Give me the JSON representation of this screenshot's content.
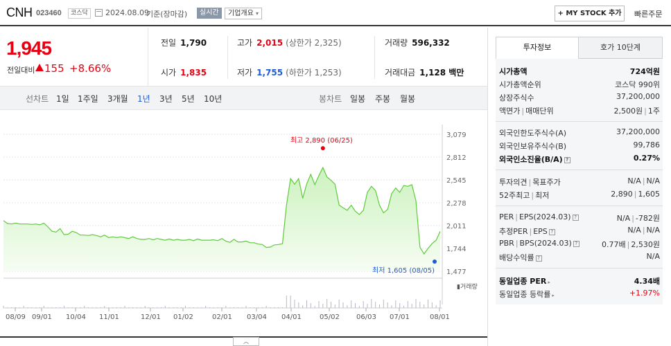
{
  "header": {
    "name": "CNH",
    "code": "023460",
    "market": "코스닥",
    "date": "2024.08.09",
    "basis": "기준(장마감)",
    "realtime": "실시간",
    "overview": "기업개요",
    "my_stock": "+ MY STOCK 추가",
    "quick_order": "빠른주문"
  },
  "price": {
    "current": "1,945",
    "change_label": "전일대비",
    "change": "155",
    "change_pct": "+8.66%"
  },
  "stats": {
    "prev_label": "전일",
    "prev": "1,790",
    "high_label": "고가",
    "high": "2,015",
    "upper_limit": "(상한가 2,325)",
    "volume_label": "거래량",
    "volume": "596,332",
    "open_label": "시가",
    "open": "1,835",
    "low_label": "저가",
    "low": "1,755",
    "lower_limit": "(하한가 1,253)",
    "amount_label": "거래대금",
    "amount": "1,128 백만"
  },
  "tabs": {
    "line_label": "선차트",
    "line": [
      "1일",
      "1주일",
      "3개월",
      "1년",
      "3년",
      "5년",
      "10년"
    ],
    "active": "1년",
    "candle_label": "봉차트",
    "candle": [
      "일봉",
      "주봉",
      "월봉"
    ]
  },
  "chart_data": {
    "type": "area",
    "y_ticks": [
      "3,079",
      "2,812",
      "2,545",
      "2,278",
      "2,011",
      "1,744",
      "1,477"
    ],
    "ylim": [
      1477,
      3079
    ],
    "x_ticks": [
      "08/09",
      "09/01",
      "10/04",
      "11/01",
      "12/01",
      "01/02",
      "02/01",
      "03/04",
      "04/01",
      "05/02",
      "06/03",
      "07/01",
      "08/01"
    ],
    "annotation_high": "최고 2,890 (06/25)",
    "annotation_low": "최저 1,605 (08/05)",
    "volume_legend": "거래량",
    "line_color": "#5ecb3a",
    "fill_color": "#ccf2bf",
    "series": [
      {
        "values": [
          2070,
          2035,
          2030,
          2040,
          2030,
          2030,
          2030,
          2025,
          2030,
          2020,
          2040,
          1995,
          1945,
          1935,
          1975,
          1905,
          1910,
          1945,
          1930,
          1900,
          1900,
          1895,
          1905,
          1895,
          1880,
          1900,
          1870,
          1880,
          1870,
          1880,
          1870,
          1860,
          1880,
          1860,
          1850,
          1850,
          1860,
          1845,
          1860,
          1850,
          1840,
          1855,
          1840,
          1850,
          1840,
          1840,
          1850,
          1835,
          1855,
          1840,
          1840,
          1840,
          1845,
          1835,
          1860,
          1830,
          1815,
          1850,
          1820,
          1820,
          1830,
          1810,
          1810,
          1795,
          1790,
          1755,
          1760,
          1785,
          1790,
          1800,
          2250,
          2560,
          2495,
          2560,
          2330,
          2500,
          2610,
          2490,
          2595,
          2690,
          2580,
          2540,
          2495,
          2250,
          2220,
          2190,
          2250,
          2180,
          2140,
          2190,
          2400,
          2470,
          2420,
          2250,
          2160,
          2200,
          2385,
          2450,
          2400,
          2480,
          2470,
          2490,
          2300,
          1760,
          1680,
          1745,
          1800,
          1840,
          1945
        ]
      }
    ]
  }
}
